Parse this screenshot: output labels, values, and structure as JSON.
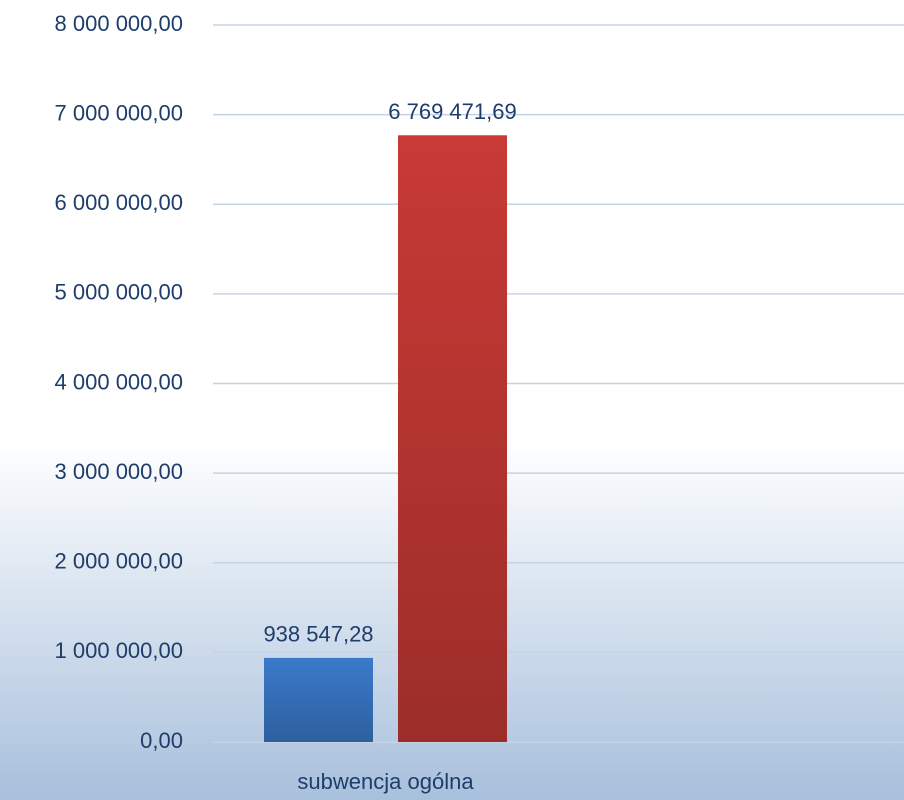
{
  "chart_data": {
    "type": "bar",
    "categories": [
      "subwencja ogólna"
    ],
    "series": [
      {
        "color": "#3a7acb",
        "values": [
          938547.28
        ],
        "value_labels": [
          "938 547,28"
        ]
      },
      {
        "color": "#c83a35",
        "values": [
          6769471.69
        ],
        "value_labels": [
          "6 769 471,69"
        ]
      }
    ],
    "ylim": [
      0,
      8000000
    ],
    "yticks": [
      {
        "value": 0,
        "label": "0,00"
      },
      {
        "value": 1000000,
        "label": "1 000 000,00"
      },
      {
        "value": 2000000,
        "label": "2 000 000,00"
      },
      {
        "value": 3000000,
        "label": "3 000 000,00"
      },
      {
        "value": 4000000,
        "label": "4 000 000,00"
      },
      {
        "value": 5000000,
        "label": "5 000 000,00"
      },
      {
        "value": 6000000,
        "label": "6 000 000,00"
      },
      {
        "value": 7000000,
        "label": "7 000 000,00"
      },
      {
        "value": 8000000,
        "label": "8 000 000,00"
      }
    ],
    "grid": true
  }
}
